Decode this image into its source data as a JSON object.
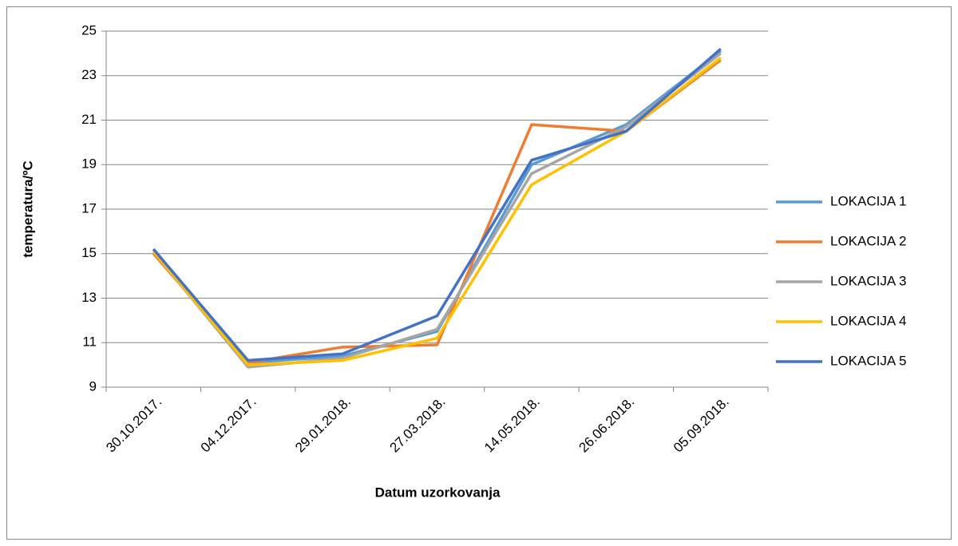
{
  "chart_data": {
    "type": "line",
    "x_label": "Datum uzorkovanja",
    "y_label": "temperatura/ºC",
    "categories": [
      "30.10.2017.",
      "04.12.2017.",
      "29.01.2018.",
      "27.03.2018.",
      "14.05.2018.",
      "26.06.2018.",
      "05.09.2018."
    ],
    "series": [
      {
        "name": "LOKACIJA 1",
        "color": "#5b9bd5",
        "values": [
          15.2,
          10.1,
          10.4,
          11.5,
          19.0,
          20.8,
          24.1
        ]
      },
      {
        "name": "LOKACIJA 2",
        "color": "#ed7d31",
        "values": [
          15.0,
          10.1,
          10.8,
          10.9,
          20.8,
          20.5,
          23.7
        ]
      },
      {
        "name": "LOKACIJA 3",
        "color": "#a5a5a5",
        "values": [
          15.1,
          9.9,
          10.3,
          11.6,
          18.6,
          20.7,
          24.0
        ]
      },
      {
        "name": "LOKACIJA 4",
        "color": "#ffc000",
        "values": [
          15.1,
          10.0,
          10.2,
          11.2,
          18.1,
          20.5,
          23.8
        ]
      },
      {
        "name": "LOKACIJA 5",
        "color": "#4472c4",
        "values": [
          15.2,
          10.2,
          10.5,
          12.2,
          19.2,
          20.5,
          24.2
        ]
      }
    ],
    "ylim": [
      9,
      25
    ],
    "yticks": [
      9,
      11,
      13,
      15,
      17,
      19,
      21,
      23,
      25
    ],
    "grid": true,
    "legend": "right"
  }
}
